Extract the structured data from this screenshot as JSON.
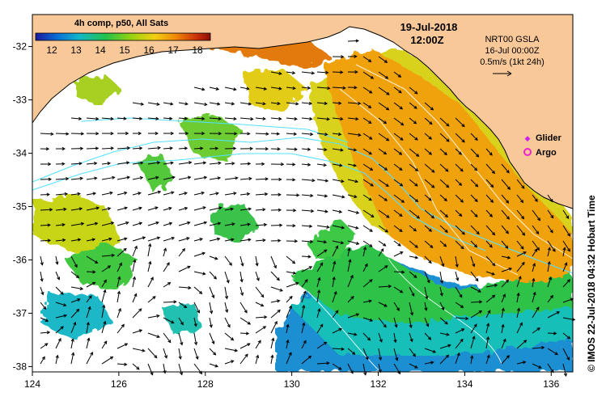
{
  "colorbar": {
    "title": "4h comp, p50, All Sats",
    "ticks": [
      "12",
      "13",
      "14",
      "15",
      "16",
      "17",
      "18"
    ],
    "colors": [
      "#1a1a9e",
      "#0a6cd6",
      "#12b8c8",
      "#22c24a",
      "#9ad20f",
      "#f2cf12",
      "#f08a0a",
      "#cc3208",
      "#8a0e04"
    ]
  },
  "date_label": "19-Jul-2018",
  "time_label": "12:00Z",
  "gsla_info": {
    "name": "NRT00 GSLA",
    "date": "16-Jul 00:00Z",
    "scale_label": "0.5m/s (1kt 24h)"
  },
  "legend": {
    "glider_label": "Glider",
    "argo_label": "Argo",
    "glider_color": "#cc22ee",
    "argo_color": "#ee22cc"
  },
  "axes": {
    "x_ticks": [
      "124",
      "126",
      "128",
      "130",
      "132",
      "134",
      "136"
    ],
    "y_ticks": [
      "-32",
      "-33",
      "-34",
      "-35",
      "-36",
      "-37",
      "-38"
    ],
    "lon_range": [
      124,
      136.5
    ],
    "lat_range": [
      -38.1,
      -31.4
    ]
  },
  "credit": "© IMOS 22-Jul-2018 04:32 Hobart Time",
  "colors": {
    "land": "#f8c898",
    "ocean_nodata": "#ffffff",
    "contour": "#55e0ff",
    "arrow": "#000000"
  }
}
